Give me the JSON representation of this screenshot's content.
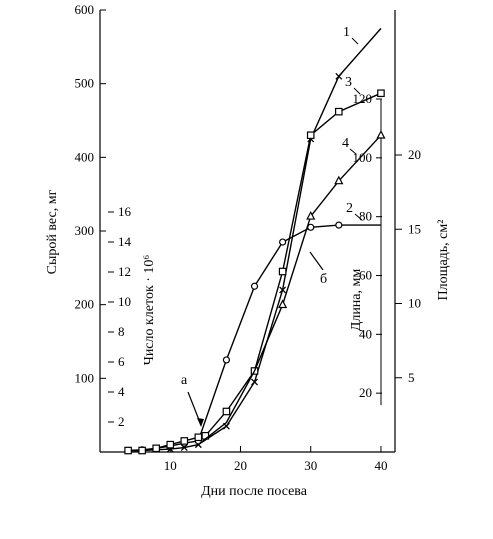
{
  "chart_data": {
    "type": "line",
    "xlabel": "Дни после посева",
    "x_ticks": [
      10,
      20,
      30,
      40
    ],
    "xlim": [
      0,
      42
    ],
    "ylim": [
      0,
      600
    ],
    "left_axis": {
      "label": "Сырой вес, мг",
      "ticks": [
        100,
        200,
        300,
        400,
        500,
        600
      ]
    },
    "inner_axis": {
      "label": "Число клеток · 10⁶",
      "ticks": [
        2,
        4,
        6,
        8,
        10,
        12,
        14,
        16
      ],
      "range": [
        0,
        16
      ]
    },
    "length_axis": {
      "label": "Длина, мм",
      "ticks": [
        20,
        40,
        60,
        80,
        100,
        120
      ],
      "range": [
        0,
        120
      ]
    },
    "area_axis": {
      "label": "Площадь, см²",
      "ticks": [
        5,
        10,
        15,
        20
      ],
      "range": [
        0,
        20
      ]
    },
    "series": [
      {
        "name": "1",
        "marker": "x",
        "x": [
          4,
          6,
          8,
          10,
          12,
          14,
          18,
          22,
          26,
          30,
          34,
          40
        ],
        "y": [
          2,
          2,
          3,
          4,
          6,
          10,
          35,
          95,
          220,
          425,
          510,
          575
        ],
        "marked": [
          false,
          false,
          false,
          true,
          true,
          true,
          true,
          true,
          true,
          true,
          true,
          false
        ]
      },
      {
        "name": "2",
        "marker": "o",
        "x": [
          4,
          6,
          8,
          10,
          12,
          14,
          18,
          22,
          26,
          30,
          34,
          40
        ],
        "y": [
          2,
          3,
          5,
          8,
          12,
          15,
          125,
          225,
          285,
          305,
          308,
          308
        ],
        "marked": [
          true,
          true,
          true,
          true,
          true,
          true,
          true,
          true,
          true,
          true,
          true,
          false
        ]
      },
      {
        "name": "3",
        "marker": "square",
        "x": [
          4,
          6,
          8,
          10,
          12,
          14,
          15,
          18,
          22,
          26,
          30,
          34,
          40
        ],
        "y": [
          2,
          2,
          5,
          10,
          15,
          20,
          22,
          55,
          110,
          245,
          430,
          462,
          487
        ],
        "marked": [
          true,
          true,
          true,
          true,
          true,
          true,
          true,
          true,
          true,
          true,
          true,
          true,
          true
        ]
      },
      {
        "name": "4",
        "marker": "triangle",
        "x": [
          14,
          18,
          22,
          26,
          30,
          34,
          40
        ],
        "y": [
          10,
          40,
          110,
          200,
          320,
          368,
          430
        ],
        "marked": [
          false,
          false,
          false,
          true,
          true,
          true,
          true
        ]
      }
    ],
    "annotations": [
      {
        "text": "а",
        "x": 15,
        "y": 22
      },
      {
        "text": "б",
        "x": 30,
        "y": 305
      }
    ]
  }
}
